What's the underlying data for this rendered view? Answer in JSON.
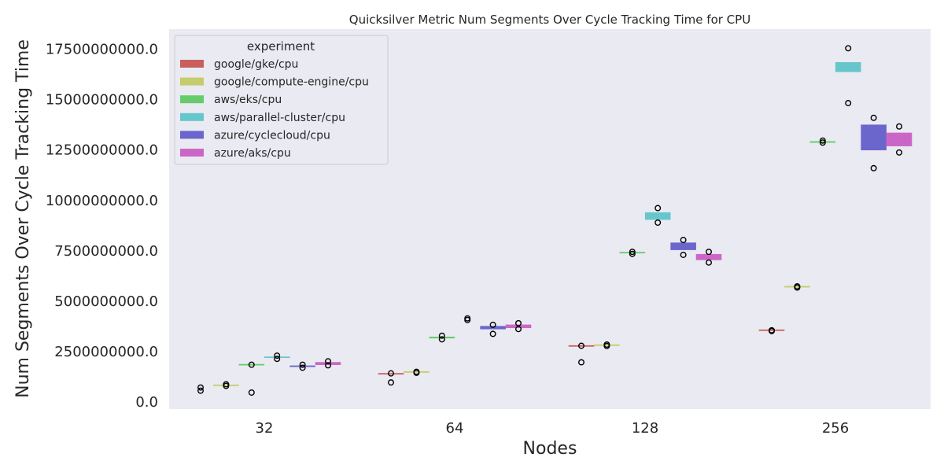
{
  "chart_data": {
    "type": "box",
    "title": "Quicksilver Metric Num Segments Over Cycle Tracking Time for CPU",
    "xlabel": "Nodes",
    "ylabel": "Num Segments Over Cycle Tracking Time",
    "categories": [
      "32",
      "64",
      "128",
      "256"
    ],
    "ylim": [
      -350000000,
      18500000000
    ],
    "yticks": [
      0,
      2500000000,
      5000000000,
      7500000000,
      10000000000,
      12500000000,
      15000000000,
      17500000000
    ],
    "ytick_labels": [
      "0.0",
      "2500000000.0",
      "5000000000.0",
      "7500000000.0",
      "10000000000.0",
      "12500000000.0",
      "15000000000.0",
      "17500000000.0"
    ],
    "grid": false,
    "legend": {
      "title": "experiment",
      "position": "upper-left"
    },
    "series": [
      {
        "name": "google/gke/cpu",
        "color": "#c95f5c",
        "boxes": [
          {
            "category": "32",
            "q1": null,
            "median": null,
            "q3": null,
            "fliers": [
              720000000,
              560000000
            ]
          },
          {
            "category": "64",
            "q1": 1390000000,
            "median": 1400000000,
            "q3": 1410000000,
            "fliers": [
              1420000000,
              970000000
            ]
          },
          {
            "category": "128",
            "q1": 2770000000,
            "median": 2780000000,
            "q3": 2790000000,
            "fliers": [
              2790000000,
              1970000000
            ]
          },
          {
            "category": "256",
            "q1": 3550000000,
            "median": 3560000000,
            "q3": 3570000000,
            "fliers": [
              3560000000,
              3520000000
            ]
          }
        ]
      },
      {
        "name": "google/compute-engine/cpu",
        "color": "#c6cc6b",
        "boxes": [
          {
            "category": "32",
            "q1": 820000000,
            "median": 830000000,
            "q3": 840000000,
            "fliers": [
              880000000,
              800000000
            ]
          },
          {
            "category": "64",
            "q1": 1480000000,
            "median": 1490000000,
            "q3": 1500000000,
            "fliers": [
              1500000000,
              1450000000
            ]
          },
          {
            "category": "128",
            "q1": 2810000000,
            "median": 2820000000,
            "q3": 2830000000,
            "fliers": [
              2850000000,
              2780000000
            ]
          },
          {
            "category": "256",
            "q1": 5710000000,
            "median": 5720000000,
            "q3": 5730000000,
            "fliers": [
              5740000000,
              5680000000
            ]
          }
        ]
      },
      {
        "name": "aws/eks/cpu",
        "color": "#66cc6b",
        "boxes": [
          {
            "category": "32",
            "q1": 1840000000,
            "median": 1850000000,
            "q3": 1860000000,
            "fliers": [
              1850000000,
              470000000
            ]
          },
          {
            "category": "64",
            "q1": 3170000000,
            "median": 3200000000,
            "q3": 3230000000,
            "fliers": [
              3290000000,
              3110000000
            ]
          },
          {
            "category": "128",
            "q1": 7400000000,
            "median": 7410000000,
            "q3": 7420000000,
            "fliers": [
              7450000000,
              7350000000
            ]
          },
          {
            "category": "256",
            "q1": 12880000000,
            "median": 12900000000,
            "q3": 12920000000,
            "fliers": [
              12970000000,
              12870000000
            ]
          }
        ]
      },
      {
        "name": "aws/parallel-cluster/cpu",
        "color": "#66c6cc",
        "boxes": [
          {
            "category": "32",
            "q1": 2210000000,
            "median": 2220000000,
            "q3": 2230000000,
            "fliers": [
              2300000000,
              2140000000
            ]
          },
          {
            "category": "64",
            "q1": null,
            "median": null,
            "q3": null,
            "fliers": [
              4150000000,
              4070000000
            ]
          },
          {
            "category": "128",
            "q1": 9050000000,
            "median": 9200000000,
            "q3": 9400000000,
            "fliers": [
              9620000000,
              8900000000
            ]
          },
          {
            "category": "256",
            "q1": 16380000000,
            "median": 16600000000,
            "q3": 16850000000,
            "fliers": [
              17550000000,
              14830000000
            ]
          }
        ]
      },
      {
        "name": "azure/cyclecloud/cpu",
        "color": "#6b66cc",
        "boxes": [
          {
            "category": "32",
            "q1": 1760000000,
            "median": 1780000000,
            "q3": 1790000000,
            "fliers": [
              1850000000,
              1700000000
            ]
          },
          {
            "category": "64",
            "q1": 3620000000,
            "median": 3690000000,
            "q3": 3760000000,
            "fliers": [
              3830000000,
              3380000000
            ]
          },
          {
            "category": "128",
            "q1": 7550000000,
            "median": 7700000000,
            "q3": 7900000000,
            "fliers": [
              8040000000,
              7300000000
            ]
          },
          {
            "category": "256",
            "q1": 12500000000,
            "median": 13100000000,
            "q3": 13750000000,
            "fliers": [
              14100000000,
              11600000000
            ]
          }
        ]
      },
      {
        "name": "azure/aks/cpu",
        "color": "#cc66c6",
        "boxes": [
          {
            "category": "32",
            "q1": 1850000000,
            "median": 1920000000,
            "q3": 1970000000,
            "fliers": [
              2020000000,
              1820000000
            ]
          },
          {
            "category": "64",
            "q1": 3680000000,
            "median": 3760000000,
            "q3": 3830000000,
            "fliers": [
              3910000000,
              3620000000
            ]
          },
          {
            "category": "128",
            "q1": 7050000000,
            "median": 7200000000,
            "q3": 7330000000,
            "fliers": [
              7450000000,
              6920000000
            ]
          },
          {
            "category": "256",
            "q1": 12700000000,
            "median": 13000000000,
            "q3": 13350000000,
            "fliers": [
              13670000000,
              12380000000
            ]
          }
        ]
      }
    ]
  }
}
